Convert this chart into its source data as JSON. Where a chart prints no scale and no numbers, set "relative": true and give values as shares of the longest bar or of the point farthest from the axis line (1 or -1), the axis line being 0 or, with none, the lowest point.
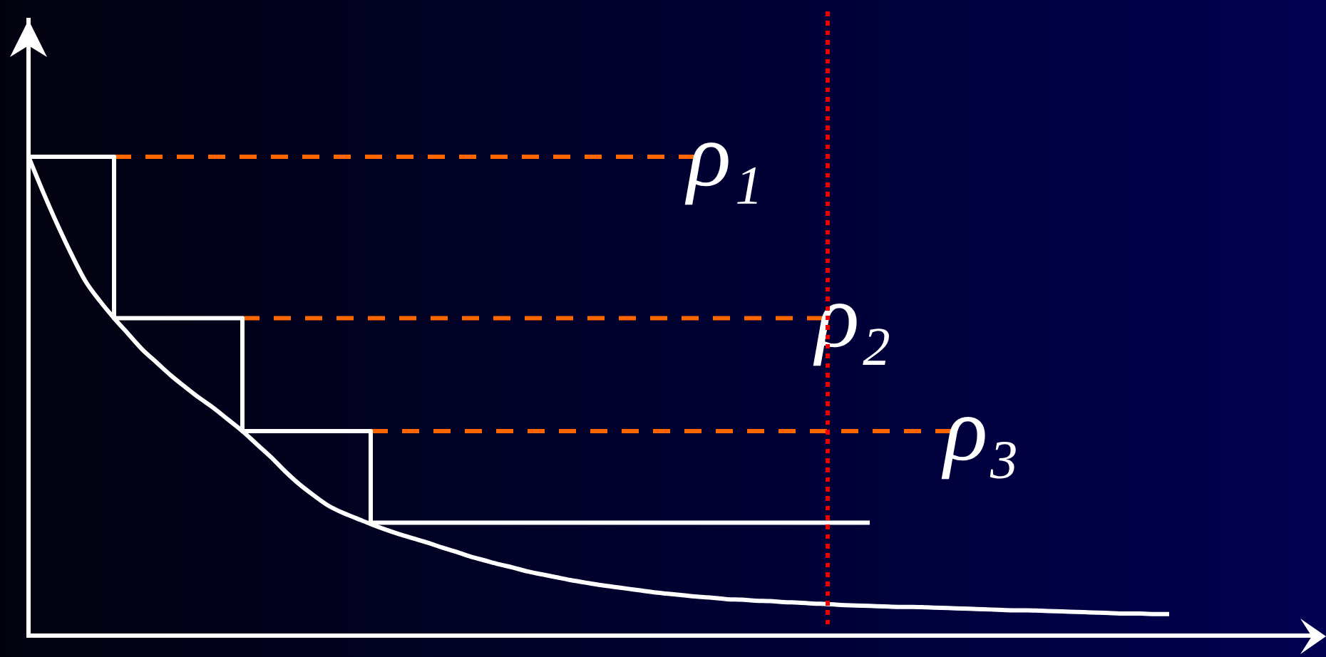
{
  "chart_data": {
    "type": "line",
    "relative": true,
    "grid": false,
    "legend": false,
    "marker": "none",
    "tick_labels": false,
    "categories": [
      null,
      null,
      null,
      null,
      null,
      null,
      null,
      null,
      null,
      null,
      null,
      null,
      null,
      null,
      null,
      null,
      null,
      null,
      null,
      null,
      null,
      null,
      null,
      null,
      null,
      null,
      null,
      null,
      null,
      null,
      null,
      null,
      null,
      null,
      null,
      null,
      null,
      null,
      null,
      null,
      null,
      null,
      null,
      null,
      null,
      null,
      null,
      null,
      null,
      null,
      null,
      null,
      null,
      null,
      null,
      null,
      null,
      null,
      null,
      null,
      null,
      null,
      null,
      null,
      null,
      null,
      null,
      null,
      null,
      null,
      null,
      null,
      null,
      null,
      null,
      null,
      null,
      null,
      null,
      null,
      null,
      null,
      null,
      null,
      null,
      null,
      null,
      null,
      null,
      null,
      null
    ],
    "series": [
      {
        "color": "#ffffff",
        "line_style": "solid",
        "values": [
          1,
          0.928,
          0.86,
          0.797,
          0.74,
          0.699,
          0.663,
          0.63,
          0.597,
          0.57,
          0.543,
          0.519,
          0.496,
          0.475,
          0.451,
          0.427,
          0.4,
          0.373,
          0.343,
          0.316,
          0.293,
          0.272,
          0.257,
          0.245,
          0.233,
          0.222,
          0.212,
          0.203,
          0.194,
          0.184,
          0.175,
          0.165,
          0.157,
          0.149,
          0.142,
          0.134,
          0.128,
          0.122,
          0.116,
          0.111,
          0.106,
          0.102,
          0.098,
          0.094,
          0.09,
          0.087,
          0.084,
          0.081,
          0.079,
          0.076,
          0.075,
          0.073,
          0.072,
          0.07,
          0.069,
          0.067,
          0.066,
          0.064,
          0.063,
          0.062,
          0.061,
          0.06,
          0.06,
          0.059,
          0.058,
          0.057,
          0.056,
          0.055,
          0.054,
          0.053,
          0.053,
          0.052,
          0.051,
          0.05,
          0.049,
          0.048,
          0.047,
          0.046,
          0.046,
          0.045,
          0.045,
          null,
          null,
          null,
          null,
          null,
          null,
          null,
          null,
          null,
          null
        ]
      },
      {
        "type": "step",
        "color": "#ffffff",
        "line_style": "solid",
        "values": [
          1,
          1,
          1,
          1,
          1,
          1,
          0.663,
          0.663,
          0.663,
          0.663,
          0.663,
          0.663,
          0.663,
          0.663,
          0.663,
          0.427,
          0.427,
          0.427,
          0.427,
          0.427,
          0.427,
          0.427,
          0.427,
          0.427,
          0.236,
          0.236,
          0.236,
          0.236,
          0.236,
          0.236,
          0.236,
          0.236,
          0.236,
          0.236,
          0.236,
          0.236,
          0.236,
          0.236,
          0.236,
          0.236,
          0.236,
          0.236,
          0.236,
          0.236,
          0.236,
          0.236,
          0.236,
          0.236,
          0.236,
          0.236,
          0.236,
          0.236,
          0.236,
          0.236,
          0.236,
          0.236,
          0.236,
          0.236,
          0.236,
          0.236,
          null,
          null,
          null,
          null,
          null,
          null,
          null,
          null,
          null,
          null,
          null,
          null,
          null,
          null,
          null,
          null,
          null,
          null,
          null,
          null,
          null,
          null,
          null,
          null,
          null,
          null,
          null,
          null,
          null,
          null,
          null
        ]
      },
      {
        "name": "ρ₁",
        "color": "#ff6600",
        "line_style": "dashed",
        "values": [
          null,
          null,
          null,
          null,
          null,
          null,
          1,
          1,
          1,
          1,
          1,
          1,
          1,
          1,
          1,
          1,
          1,
          1,
          1,
          1,
          1,
          1,
          1,
          1,
          1,
          1,
          1,
          1,
          1,
          1,
          1,
          1,
          1,
          1,
          1,
          1,
          1,
          1,
          1,
          1,
          1,
          1,
          1,
          1,
          1,
          1,
          1,
          1,
          null,
          null,
          null,
          null,
          null,
          null,
          null,
          null,
          null,
          null,
          null,
          null,
          null,
          null,
          null,
          null,
          null,
          null,
          null,
          null,
          null,
          null,
          null,
          null,
          null,
          null,
          null,
          null,
          null,
          null,
          null,
          null,
          null,
          null,
          null,
          null,
          null,
          null,
          null,
          null,
          null,
          null,
          null
        ]
      },
      {
        "name": "ρ₂",
        "color": "#ff6600",
        "line_style": "dashed",
        "values": [
          null,
          null,
          null,
          null,
          null,
          null,
          null,
          null,
          null,
          null,
          null,
          null,
          null,
          null,
          null,
          0.663,
          0.663,
          0.663,
          0.663,
          0.663,
          0.663,
          0.663,
          0.663,
          0.663,
          0.663,
          0.663,
          0.663,
          0.663,
          0.663,
          0.663,
          0.663,
          0.663,
          0.663,
          0.663,
          0.663,
          0.663,
          0.663,
          0.663,
          0.663,
          0.663,
          0.663,
          0.663,
          0.663,
          0.663,
          0.663,
          0.663,
          0.663,
          0.663,
          0.663,
          0.663,
          0.663,
          0.663,
          0.663,
          0.663,
          0.663,
          0.663,
          0.663,
          null,
          null,
          null,
          null,
          null,
          null,
          null,
          null,
          null,
          null,
          null,
          null,
          null,
          null,
          null,
          null,
          null,
          null,
          null,
          null,
          null,
          null,
          null,
          null,
          null,
          null,
          null,
          null,
          null,
          null,
          null,
          null,
          null,
          null
        ]
      },
      {
        "name": "ρ₃",
        "color": "#ff6600",
        "line_style": "dashed",
        "values": [
          null,
          null,
          null,
          null,
          null,
          null,
          null,
          null,
          null,
          null,
          null,
          null,
          null,
          null,
          null,
          null,
          null,
          null,
          null,
          null,
          null,
          null,
          null,
          null,
          0.427,
          0.427,
          0.427,
          0.427,
          0.427,
          0.427,
          0.427,
          0.427,
          0.427,
          0.427,
          0.427,
          0.427,
          0.427,
          0.427,
          0.427,
          0.427,
          0.427,
          0.427,
          0.427,
          0.427,
          0.427,
          0.427,
          0.427,
          0.427,
          0.427,
          0.427,
          0.427,
          0.427,
          0.427,
          0.427,
          0.427,
          0.427,
          0.427,
          0.427,
          0.427,
          0.427,
          0.427,
          0.427,
          0.427,
          0.427,
          0.427,
          0.427,
          null,
          null,
          null,
          null,
          null,
          null,
          null,
          null,
          null,
          null,
          null,
          null,
          null,
          null,
          null,
          null,
          null,
          null,
          null,
          null,
          null,
          null,
          null,
          null,
          null
        ]
      }
    ]
  }
}
